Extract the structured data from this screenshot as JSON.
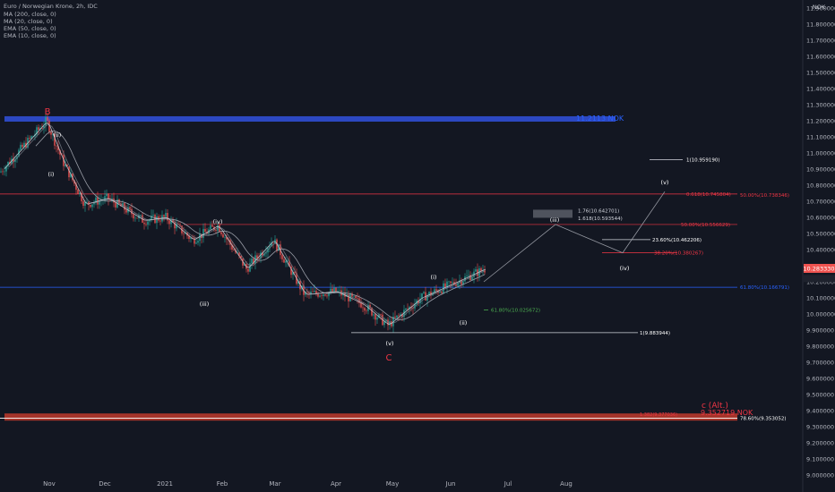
{
  "header": {
    "symbol": "Euro / Norwegian Krone, 2h, IDC",
    "indicators": [
      "MA (200, close, 0)",
      "MA (20, close, 0)",
      "EMA (50, close, 0)",
      "EMA (10, close, 0)"
    ]
  },
  "axis": {
    "currency": "NOK",
    "ylim": [
      9.0,
      11.95
    ],
    "y_ticks": [
      "11.900000",
      "11.800000",
      "11.700000",
      "11.600000",
      "11.500000",
      "11.400000",
      "11.300000",
      "11.200000",
      "11.100000",
      "11.000000",
      "10.900000",
      "10.800000",
      "10.700000",
      "10.600000",
      "10.500000",
      "10.400000",
      "10.300000",
      "10.200000",
      "10.100000",
      "10.000000",
      "9.900000",
      "9.800000",
      "9.700000",
      "9.600000",
      "9.500000",
      "9.400000",
      "9.300000",
      "9.200000",
      "9.100000",
      "9.000000"
    ],
    "x_ticks": [
      "Nov",
      "Dec",
      "2021",
      "Feb",
      "Mar",
      "Apr",
      "May",
      "Jun",
      "Jul",
      "Aug"
    ],
    "last_price": "10.283330"
  },
  "colors": {
    "background": "#131722",
    "up": "#26a69a",
    "down": "#ef5350",
    "resistance_band": "#2c48c2",
    "support_band": "#c0392b",
    "red_text": "#f23645",
    "blue_text": "#2962ff",
    "green_text": "#4caf50"
  },
  "chart_data": {
    "type": "candlestick",
    "series": [
      {
        "name": "EURNOK",
        "x": [
          "Oct",
          "Nov",
          "Nov",
          "Nov",
          "Dec",
          "Dec",
          "2021",
          "Jan",
          "Feb",
          "Feb",
          "Mar",
          "Mar",
          "Apr",
          "Apr",
          "May",
          "May",
          "Jun",
          "Jun"
        ],
        "values": [
          10.88,
          11.2,
          10.95,
          10.68,
          10.72,
          10.58,
          10.6,
          10.46,
          10.55,
          10.28,
          10.46,
          10.12,
          10.14,
          10.06,
          9.93,
          10.1,
          10.2,
          10.28
        ]
      }
    ],
    "wave_labels": [
      "B",
      "(ii)",
      "(i)",
      "(iv)",
      "(iii)",
      "(v)",
      "C",
      "(i)",
      "(ii)",
      "(iii)",
      "(iv)",
      "(v)"
    ],
    "annotations": {
      "band_high": "11.2113 NOK",
      "band_low": "9.352719 NOK",
      "alt_label": "c (Alt.)",
      "fib_1_top": "1(10.959190)",
      "fib_0618_top": "0.618(10.745804)",
      "fib_50_top": "50.00%(10.738346)",
      "fib_176": "1.76(10.642701)",
      "fib_1618": "1.618(10.593544)",
      "fib_50_mid": "50.00%(10.556629)",
      "fib_2360": "23.60%(10.462206)",
      "fib_3820": "38.20%(10.380267)",
      "fib_6180": "61.80%(10.166791)",
      "fib_6180_small": "61.80%(10.025672)",
      "fib_1_low": "1(9.883944)",
      "fib_7860": "78.60%(9.353052)",
      "fib_1382": "1.382(9.377036)"
    }
  }
}
